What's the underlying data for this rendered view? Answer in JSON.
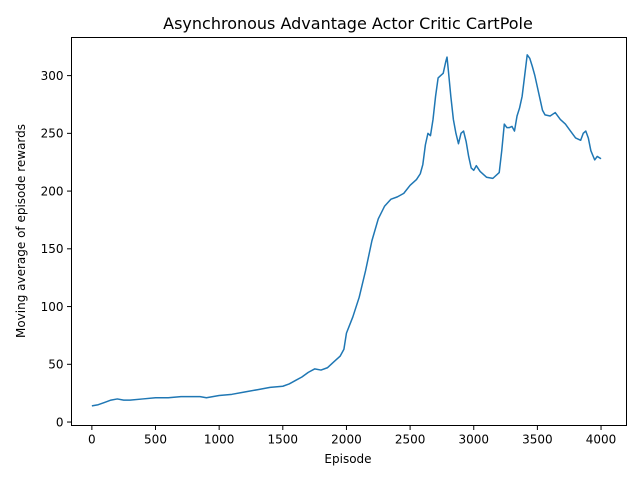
{
  "chart_data": {
    "type": "line",
    "title": "Asynchronous Advantage Actor Critic CartPole",
    "xlabel": "Episode",
    "ylabel": "Moving average of episode rewards",
    "xlim": [
      -160,
      4200
    ],
    "ylim": [
      -3,
      333
    ],
    "xticks": [
      0,
      500,
      1000,
      1500,
      2000,
      2500,
      3000,
      3500,
      4000
    ],
    "yticks": [
      0,
      50,
      100,
      150,
      200,
      250,
      300
    ],
    "grid": false,
    "legend": "none",
    "series": [
      {
        "color": "#1f77b4",
        "x": [
          0,
          50,
          100,
          150,
          200,
          250,
          300,
          400,
          500,
          600,
          700,
          800,
          850,
          900,
          1000,
          1100,
          1200,
          1300,
          1400,
          1500,
          1550,
          1600,
          1650,
          1700,
          1750,
          1800,
          1850,
          1900,
          1950,
          1980,
          2000,
          2050,
          2100,
          2150,
          2200,
          2250,
          2300,
          2350,
          2400,
          2450,
          2500,
          2550,
          2580,
          2600,
          2620,
          2640,
          2660,
          2680,
          2700,
          2720,
          2740,
          2760,
          2780,
          2790,
          2800,
          2820,
          2840,
          2860,
          2880,
          2900,
          2920,
          2940,
          2960,
          2980,
          3000,
          3020,
          3050,
          3100,
          3150,
          3200,
          3220,
          3240,
          3260,
          3280,
          3300,
          3320,
          3340,
          3360,
          3380,
          3400,
          3420,
          3440,
          3460,
          3480,
          3500,
          3520,
          3540,
          3560,
          3600,
          3640,
          3680,
          3720,
          3760,
          3800,
          3840,
          3860,
          3880,
          3900,
          3920,
          3950,
          3970,
          4000
        ],
        "y": [
          14,
          15,
          17,
          19,
          20,
          19,
          19,
          20,
          21,
          21,
          22,
          22,
          22,
          21,
          23,
          24,
          26,
          28,
          30,
          31,
          33,
          36,
          39,
          43,
          46,
          45,
          47,
          52,
          57,
          63,
          77,
          91,
          108,
          131,
          157,
          176,
          187,
          193,
          195,
          198,
          205,
          210,
          215,
          223,
          240,
          250,
          248,
          262,
          282,
          298,
          300,
          302,
          312,
          316,
          305,
          282,
          262,
          250,
          241,
          250,
          252,
          243,
          230,
          220,
          218,
          222,
          217,
          212,
          211,
          216,
          235,
          258,
          255,
          255,
          256,
          252,
          265,
          272,
          282,
          300,
          318,
          315,
          308,
          300,
          290,
          280,
          270,
          266,
          265,
          268,
          262,
          258,
          252,
          246,
          244,
          250,
          252,
          246,
          235,
          227,
          230,
          228
        ]
      }
    ]
  }
}
